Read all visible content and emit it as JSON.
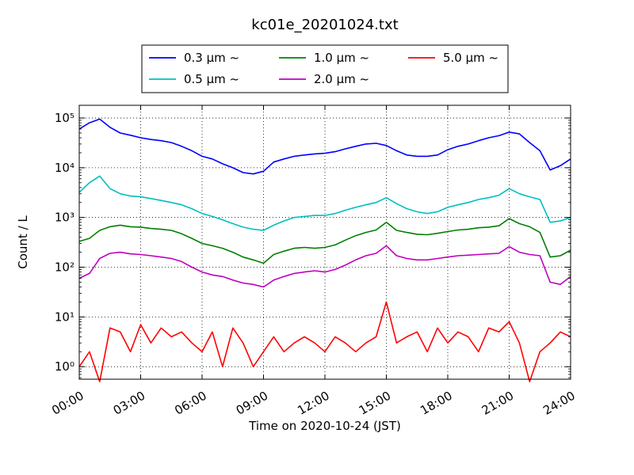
{
  "chart_data": {
    "type": "line",
    "title": "kc01e_20201024.txt",
    "xlabel": "Time on 2020-10-24 (JST)",
    "ylabel": "Count / L",
    "y_scale": "log",
    "xlim": [
      "00:00",
      "24:00"
    ],
    "ylim": [
      0.56,
      180000
    ],
    "grid": true,
    "legend_position": "top-center",
    "x_tick_labels": [
      "00:00",
      "03:00",
      "06:00",
      "09:00",
      "12:00",
      "15:00",
      "18:00",
      "21:00",
      "24:00"
    ],
    "y_tick_labels": [
      "10⁰",
      "10¹",
      "10²",
      "10³",
      "10⁴",
      "10⁵"
    ],
    "series": [
      {
        "name": "0.3 μm ~",
        "color": "#0000ff",
        "x": [
          "00:00",
          "00:30",
          "01:00",
          "01:30",
          "02:00",
          "02:30",
          "03:00",
          "03:30",
          "04:00",
          "04:30",
          "05:00",
          "05:30",
          "06:00",
          "06:30",
          "07:00",
          "07:30",
          "08:00",
          "08:30",
          "09:00",
          "09:30",
          "10:00",
          "10:30",
          "11:00",
          "11:30",
          "12:00",
          "12:30",
          "13:00",
          "13:30",
          "14:00",
          "14:30",
          "15:00",
          "15:30",
          "16:00",
          "16:30",
          "17:00",
          "17:30",
          "18:00",
          "18:30",
          "19:00",
          "19:30",
          "20:00",
          "20:30",
          "21:00",
          "21:30",
          "22:00",
          "22:30",
          "23:00",
          "23:30",
          "24:00"
        ],
        "y": [
          60000,
          80000,
          95000,
          65000,
          50000,
          45000,
          40000,
          37000,
          35000,
          32000,
          27000,
          22000,
          17000,
          15000,
          12000,
          10000,
          8000,
          7500,
          8500,
          13000,
          15000,
          17000,
          18000,
          19000,
          19500,
          21000,
          24000,
          27000,
          30000,
          31000,
          28000,
          22000,
          18000,
          17000,
          17000,
          18000,
          23000,
          27000,
          30000,
          35000,
          40000,
          44000,
          52000,
          48000,
          32000,
          22000,
          9000,
          11000,
          15000
        ]
      },
      {
        "name": "0.5 μm ~",
        "color": "#00bfbf",
        "x": [
          "00:00",
          "00:30",
          "01:00",
          "01:30",
          "02:00",
          "02:30",
          "03:00",
          "03:30",
          "04:00",
          "04:30",
          "05:00",
          "05:30",
          "06:00",
          "06:30",
          "07:00",
          "07:30",
          "08:00",
          "08:30",
          "09:00",
          "09:30",
          "10:00",
          "10:30",
          "11:00",
          "11:30",
          "12:00",
          "12:30",
          "13:00",
          "13:30",
          "14:00",
          "14:30",
          "15:00",
          "15:30",
          "16:00",
          "16:30",
          "17:00",
          "17:30",
          "18:00",
          "18:30",
          "19:00",
          "19:30",
          "20:00",
          "20:30",
          "21:00",
          "21:30",
          "22:00",
          "22:30",
          "23:00",
          "23:30",
          "24:00"
        ],
        "y": [
          3200,
          5000,
          6800,
          3800,
          3000,
          2700,
          2600,
          2400,
          2200,
          2000,
          1800,
          1500,
          1200,
          1050,
          900,
          750,
          640,
          580,
          550,
          700,
          850,
          1000,
          1050,
          1100,
          1100,
          1200,
          1400,
          1600,
          1800,
          2000,
          2500,
          1900,
          1500,
          1300,
          1200,
          1300,
          1600,
          1800,
          2000,
          2300,
          2500,
          2800,
          3800,
          3000,
          2600,
          2300,
          800,
          850,
          1000
        ]
      },
      {
        "name": "1.0 μm ~",
        "color": "#008000",
        "x": [
          "00:00",
          "00:30",
          "01:00",
          "01:30",
          "02:00",
          "02:30",
          "03:00",
          "03:30",
          "04:00",
          "04:30",
          "05:00",
          "05:30",
          "06:00",
          "06:30",
          "07:00",
          "07:30",
          "08:00",
          "08:30",
          "09:00",
          "09:30",
          "10:00",
          "10:30",
          "11:00",
          "11:30",
          "12:00",
          "12:30",
          "13:00",
          "13:30",
          "14:00",
          "14:30",
          "15:00",
          "15:30",
          "16:00",
          "16:30",
          "17:00",
          "17:30",
          "18:00",
          "18:30",
          "19:00",
          "19:30",
          "20:00",
          "20:30",
          "21:00",
          "21:30",
          "22:00",
          "22:30",
          "23:00",
          "23:30",
          "24:00"
        ],
        "y": [
          330,
          380,
          550,
          650,
          700,
          650,
          640,
          600,
          580,
          550,
          470,
          380,
          300,
          270,
          240,
          200,
          160,
          140,
          120,
          180,
          210,
          240,
          250,
          240,
          250,
          280,
          350,
          430,
          500,
          560,
          800,
          550,
          500,
          460,
          450,
          480,
          520,
          560,
          580,
          620,
          640,
          680,
          950,
          750,
          650,
          500,
          160,
          170,
          220
        ]
      },
      {
        "name": "2.0 μm ~",
        "color": "#bf00bf",
        "x": [
          "00:00",
          "00:30",
          "01:00",
          "01:30",
          "02:00",
          "02:30",
          "03:00",
          "03:30",
          "04:00",
          "04:30",
          "05:00",
          "05:30",
          "06:00",
          "06:30",
          "07:00",
          "07:30",
          "08:00",
          "08:30",
          "09:00",
          "09:30",
          "10:00",
          "10:30",
          "11:00",
          "11:30",
          "12:00",
          "12:30",
          "13:00",
          "13:30",
          "14:00",
          "14:30",
          "15:00",
          "15:30",
          "16:00",
          "16:30",
          "17:00",
          "17:30",
          "18:00",
          "18:30",
          "19:00",
          "19:30",
          "20:00",
          "20:30",
          "21:00",
          "21:30",
          "22:00",
          "22:30",
          "23:00",
          "23:30",
          "24:00"
        ],
        "y": [
          60,
          75,
          150,
          190,
          200,
          185,
          180,
          170,
          160,
          150,
          130,
          100,
          80,
          70,
          65,
          55,
          48,
          45,
          40,
          55,
          65,
          75,
          80,
          85,
          80,
          90,
          110,
          140,
          170,
          190,
          270,
          170,
          150,
          140,
          140,
          150,
          160,
          170,
          175,
          180,
          185,
          190,
          260,
          200,
          180,
          170,
          50,
          45,
          65
        ]
      },
      {
        "name": "5.0 μm ~",
        "color": "#ff0000",
        "x": [
          "00:00",
          "00:30",
          "01:00",
          "01:30",
          "02:00",
          "02:30",
          "03:00",
          "03:30",
          "04:00",
          "04:30",
          "05:00",
          "05:30",
          "06:00",
          "06:30",
          "07:00",
          "07:30",
          "08:00",
          "08:30",
          "09:00",
          "09:30",
          "10:00",
          "10:30",
          "11:00",
          "11:30",
          "12:00",
          "12:30",
          "13:00",
          "13:30",
          "14:00",
          "14:30",
          "15:00",
          "15:30",
          "16:00",
          "16:30",
          "17:00",
          "17:30",
          "18:00",
          "18:30",
          "19:00",
          "19:30",
          "20:00",
          "20:30",
          "21:00",
          "21:30",
          "22:00",
          "22:30",
          "23:00",
          "23:30",
          "24:00"
        ],
        "y": [
          1,
          2,
          0.5,
          6,
          5,
          2,
          7,
          3,
          6,
          4,
          5,
          3,
          2,
          5,
          1,
          6,
          3,
          1,
          2,
          4,
          2,
          3,
          4,
          3,
          2,
          4,
          3,
          2,
          3,
          4,
          20,
          3,
          4,
          5,
          2,
          6,
          3,
          5,
          4,
          2,
          6,
          5,
          8,
          3,
          0.5,
          2,
          3,
          5,
          4
        ]
      }
    ]
  }
}
